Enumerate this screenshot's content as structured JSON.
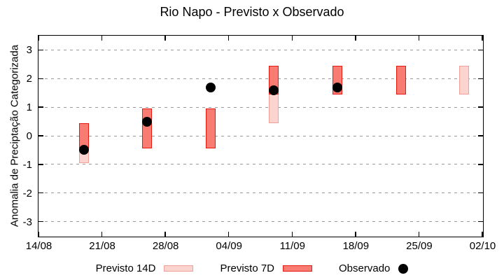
{
  "chart_data": {
    "type": "bar",
    "subtype": "range-boxes-with-scatter-overlay",
    "title": "Rio Napo - Previsto x Observado",
    "ylabel": "Anomalia de Preciptação Categorizada",
    "xlabel": "",
    "ylim": [
      -3.5,
      3.5
    ],
    "yticks": [
      3,
      2,
      1,
      0,
      -1,
      -2,
      -3
    ],
    "grid": "horizontal dashed gray",
    "legend_position": "below",
    "x_axis": {
      "span_days": 49,
      "ticks": [
        {
          "label": "14/08",
          "day": 0
        },
        {
          "label": "21/08",
          "day": 7
        },
        {
          "label": "28/08",
          "day": 14
        },
        {
          "label": "04/09",
          "day": 21
        },
        {
          "label": "11/09",
          "day": 28
        },
        {
          "label": "18/09",
          "day": 35
        },
        {
          "label": "25/09",
          "day": 42
        },
        {
          "label": "02/10",
          "day": 49
        }
      ]
    },
    "series": [
      {
        "name": "Previsto 14D",
        "style": "box-range",
        "fill": "#fbd4cf",
        "border": "#f0a096",
        "points": [
          {
            "date": "19/08",
            "day": 5,
            "range": [
              -0.95,
              0.45
            ]
          },
          {
            "date": "09/09",
            "day": 26,
            "range": [
              0.45,
              2.45
            ]
          },
          {
            "date": "30/09",
            "day": 47,
            "range": [
              1.45,
              2.45
            ]
          }
        ]
      },
      {
        "name": "Previsto 7D",
        "style": "box-range",
        "fill": "#f97c72",
        "border": "#e51812",
        "points": [
          {
            "date": "19/08",
            "day": 5,
            "range": [
              -0.45,
              0.45
            ]
          },
          {
            "date": "26/08",
            "day": 12,
            "range": [
              -0.45,
              0.95
            ]
          },
          {
            "date": "02/09",
            "day": 19,
            "range": [
              -0.45,
              0.95
            ]
          },
          {
            "date": "09/09",
            "day": 26,
            "range": [
              1.45,
              2.45
            ]
          },
          {
            "date": "16/09",
            "day": 33,
            "range": [
              1.45,
              2.45
            ]
          },
          {
            "date": "23/09",
            "day": 40,
            "range": [
              1.45,
              2.45
            ]
          }
        ]
      },
      {
        "name": "Observado",
        "style": "scatter",
        "color": "#000000",
        "points": [
          {
            "date": "19/08",
            "day": 5,
            "value": -0.5
          },
          {
            "date": "26/08",
            "day": 12,
            "value": 0.5
          },
          {
            "date": "02/09",
            "day": 19,
            "value": 1.7
          },
          {
            "date": "09/09",
            "day": 26,
            "value": 1.6
          },
          {
            "date": "16/09",
            "day": 33,
            "value": 1.7
          }
        ]
      }
    ],
    "colors": {
      "axis": "#000000",
      "grid": "#9a9a9a",
      "background": "#ffffff"
    }
  }
}
